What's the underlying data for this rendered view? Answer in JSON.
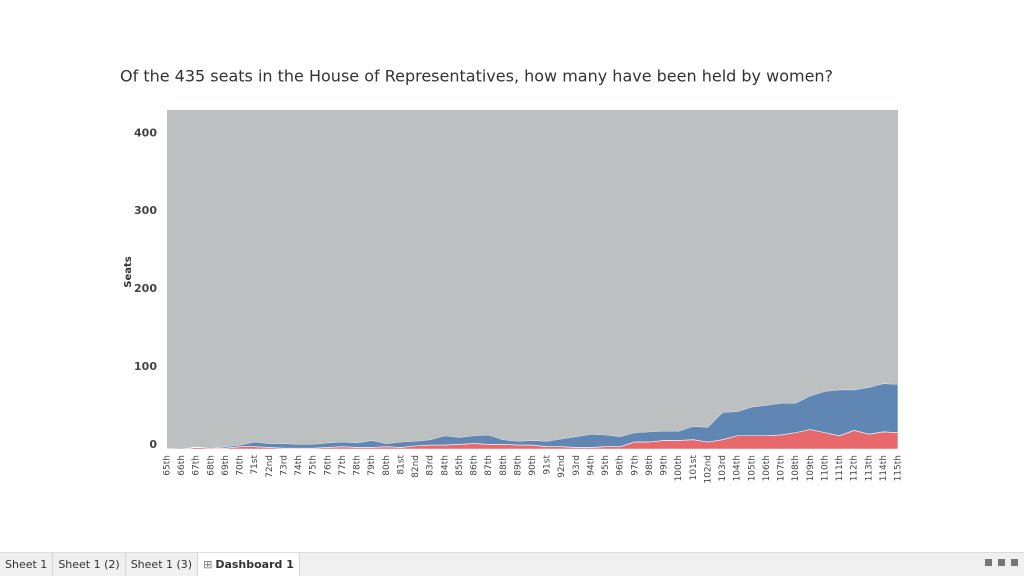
{
  "chart_data": {
    "type": "stacked-area",
    "title": "Of the 435 seats in the House of Representatives, how many have been held by women?",
    "y_label": "Seats",
    "categories": [
      "65th",
      "66th",
      "67th",
      "68th",
      "69th",
      "70th",
      "71st",
      "72nd",
      "73rd",
      "74th",
      "75th",
      "76th",
      "77th",
      "78th",
      "79th",
      "80th",
      "81st",
      "82nd",
      "83rd",
      "84th",
      "85th",
      "86th",
      "87th",
      "88th",
      "89th",
      "90th",
      "91st",
      "92nd",
      "93rd",
      "94th",
      "95th",
      "96th",
      "97th",
      "98th",
      "99th",
      "100th",
      "101st",
      "102nd",
      "103rd",
      "104th",
      "105th",
      "106th",
      "107th",
      "108th",
      "109th",
      "110th",
      "111th",
      "112th",
      "113th",
      "114th",
      "115th"
    ],
    "series": [
      {
        "color": "#e8696b",
        "values": [
          1,
          0,
          2,
          1,
          1,
          3,
          3,
          2,
          1,
          1,
          1,
          2,
          3,
          2,
          2,
          3,
          2,
          4,
          5,
          5,
          6,
          7,
          6,
          6,
          5,
          5,
          3,
          3,
          2,
          2,
          3,
          3,
          9,
          9,
          11,
          11,
          12,
          9,
          12,
          17,
          17,
          17,
          18,
          21,
          25,
          21,
          17,
          24,
          19,
          22,
          21
        ]
      },
      {
        "color": "#6087b3",
        "values": [
          0,
          0,
          1,
          0,
          2,
          2,
          6,
          5,
          6,
          5,
          5,
          6,
          6,
          6,
          9,
          4,
          7,
          6,
          7,
          12,
          9,
          10,
          12,
          6,
          5,
          6,
          7,
          10,
          14,
          17,
          15,
          13,
          12,
          13,
          12,
          12,
          17,
          19,
          35,
          31,
          37,
          39,
          41,
          38,
          43,
          53,
          59,
          52,
          60,
          62,
          62
        ]
      },
      {
        "color": "#bcc0c0",
        "values": [
          434,
          435,
          432,
          434,
          432,
          430,
          426,
          428,
          428,
          429,
          429,
          427,
          426,
          427,
          424,
          428,
          426,
          425,
          423,
          418,
          420,
          418,
          417,
          423,
          425,
          424,
          425,
          422,
          419,
          416,
          417,
          419,
          414,
          413,
          412,
          412,
          406,
          407,
          388,
          387,
          381,
          379,
          376,
          376,
          367,
          361,
          359,
          359,
          356,
          351,
          352
        ]
      }
    ],
    "ylim": [
      0,
      435
    ],
    "yticks": [
      0,
      100,
      200,
      300,
      400
    ],
    "grid": false
  },
  "tabs": [
    "Sheet 1",
    "Sheet 1 (2)",
    "Sheet 1 (3)",
    "Dashboard 1"
  ]
}
